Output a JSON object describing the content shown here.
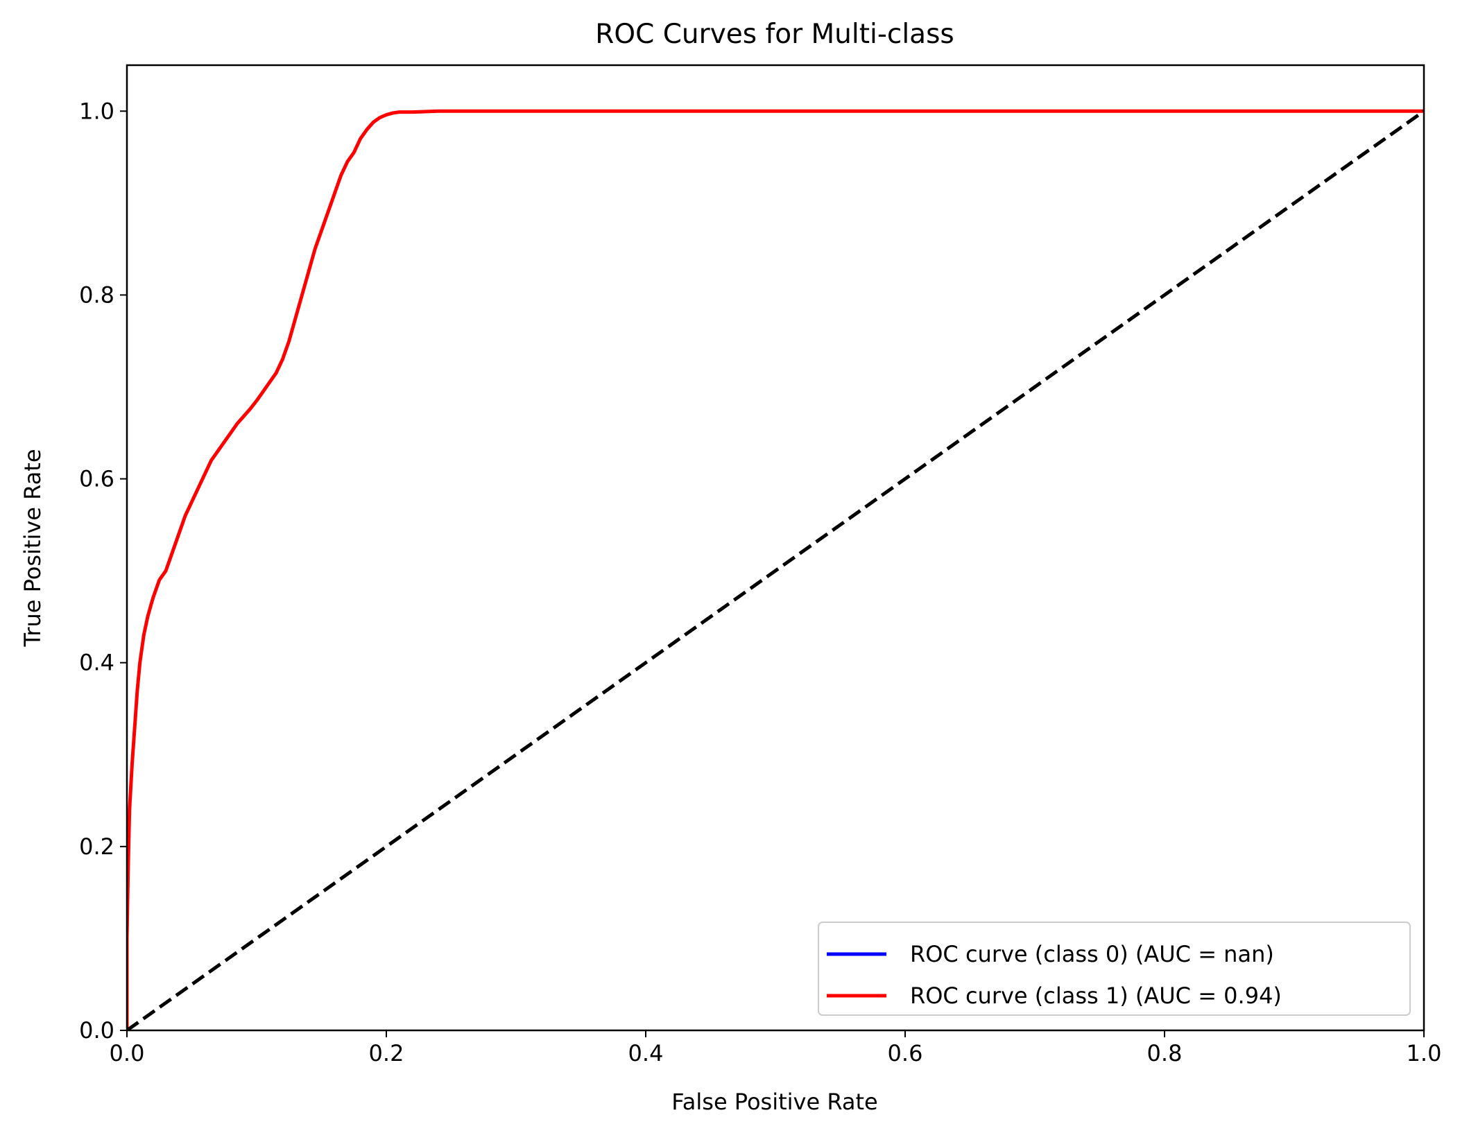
{
  "chart_data": {
    "type": "line",
    "title": "ROC Curves for Multi-class",
    "xlabel": "False Positive Rate",
    "ylabel": "True Positive Rate",
    "xlim": [
      0.0,
      1.0
    ],
    "ylim": [
      0.0,
      1.05
    ],
    "x_ticks": [
      0.0,
      0.2,
      0.4,
      0.6,
      0.8,
      1.0
    ],
    "y_ticks": [
      0.0,
      0.2,
      0.4,
      0.6,
      0.8,
      1.0
    ],
    "x_tick_labels": [
      "0.0",
      "0.2",
      "0.4",
      "0.6",
      "0.8",
      "1.0"
    ],
    "y_tick_labels": [
      "0.0",
      "0.2",
      "0.4",
      "0.6",
      "0.8",
      "1.0"
    ],
    "grid": false,
    "legend_position": "lower-right",
    "series": [
      {
        "name": "ROC curve (class 0) (AUC = nan)",
        "color": "#0000ff",
        "style": "solid",
        "x": [],
        "y": []
      },
      {
        "name": "ROC curve (class 1) (AUC = 0.94)",
        "color": "#ff0000",
        "style": "solid",
        "x": [
          0.0,
          0.0,
          0.001,
          0.002,
          0.004,
          0.006,
          0.008,
          0.01,
          0.013,
          0.016,
          0.02,
          0.025,
          0.03,
          0.035,
          0.04,
          0.045,
          0.05,
          0.055,
          0.06,
          0.065,
          0.07,
          0.075,
          0.08,
          0.085,
          0.09,
          0.095,
          0.1,
          0.105,
          0.11,
          0.115,
          0.12,
          0.125,
          0.13,
          0.135,
          0.14,
          0.145,
          0.15,
          0.155,
          0.16,
          0.165,
          0.17,
          0.175,
          0.18,
          0.185,
          0.19,
          0.195,
          0.2,
          0.205,
          0.21,
          0.22,
          0.24,
          0.3,
          0.4,
          0.5,
          0.6,
          0.7,
          0.8,
          0.9,
          1.0
        ],
        "y": [
          0.0,
          0.1,
          0.18,
          0.24,
          0.29,
          0.33,
          0.37,
          0.4,
          0.43,
          0.45,
          0.47,
          0.49,
          0.5,
          0.52,
          0.54,
          0.56,
          0.575,
          0.59,
          0.605,
          0.62,
          0.63,
          0.64,
          0.65,
          0.66,
          0.668,
          0.676,
          0.685,
          0.695,
          0.705,
          0.715,
          0.73,
          0.75,
          0.775,
          0.8,
          0.825,
          0.85,
          0.87,
          0.89,
          0.91,
          0.93,
          0.945,
          0.955,
          0.97,
          0.98,
          0.988,
          0.993,
          0.996,
          0.998,
          0.999,
          0.999,
          1.0,
          1.0,
          1.0,
          1.0,
          1.0,
          1.0,
          1.0,
          1.0,
          1.0
        ]
      },
      {
        "name": "",
        "color": "#000000",
        "style": "dashed",
        "x": [
          0.0,
          1.0
        ],
        "y": [
          0.0,
          1.0
        ]
      }
    ]
  }
}
